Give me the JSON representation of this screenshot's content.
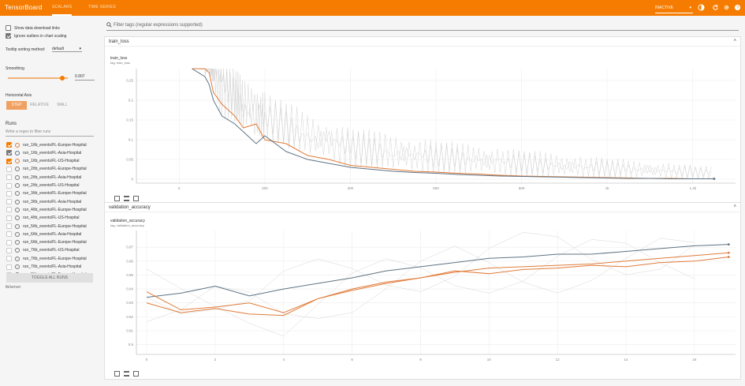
{
  "app": {
    "title": "TensorBoard",
    "tabs": [
      {
        "label": "SCALARS"
      },
      {
        "label": "TIME SERIES"
      }
    ],
    "mode": "INACTIVE",
    "accent": "#f57c00"
  },
  "sidebar": {
    "show_download": "Show data download links",
    "ignore_outliers": "Ignore outliers in chart scaling",
    "tooltip_label": "Tooltip sorting method:",
    "tooltip_value": "default",
    "smoothing_label": "Smoothing",
    "smoothing_value": 0.907,
    "smoothing_text": "0.907",
    "haxis_label": "Horizontal Axis",
    "haxis_options": [
      "STEP",
      "RELATIVE",
      "WALL"
    ],
    "runs_label": "Runs",
    "runs_filter_placeholder": "Write a regex to filter runs",
    "runs": [
      {
        "name": "run_1/tb_events/FL-Europe-Hospital",
        "checked": true,
        "color": "orange"
      },
      {
        "name": "run_1/tb_events/FL-Asia-Hospital",
        "checked": true,
        "color": "gray"
      },
      {
        "name": "run_1/tb_events/FL-US-Hospital",
        "checked": true,
        "color": "orange"
      },
      {
        "name": "run_2/tb_events/FL-Europe-Hospital",
        "checked": false
      },
      {
        "name": "run_2/tb_events/FL-Asia-Hospital",
        "checked": false
      },
      {
        "name": "run_2/tb_events/FL-US-Hospital",
        "checked": false
      },
      {
        "name": "run_3/tb_events/FL-Europe-Hospital",
        "checked": false
      },
      {
        "name": "run_3/tb_events/FL-Asia-Hospital",
        "checked": false
      },
      {
        "name": "run_4/tb_events/FL-Europe-Hospital",
        "checked": false
      },
      {
        "name": "run_4/tb_events/FL-US-Hospital",
        "checked": false
      },
      {
        "name": "run_5/tb_events/FL-Europe-Hospital",
        "checked": false
      },
      {
        "name": "run_6/tb_events/FL-Asia-Hospital",
        "checked": false
      },
      {
        "name": "run_6/tb_events/FL-Europe-Hospital",
        "checked": false
      },
      {
        "name": "run_7/tb_events/FL-US-Hospital",
        "checked": false
      },
      {
        "name": "run_7/tb_events/FL-Europe-Hospital",
        "checked": false
      },
      {
        "name": "run_7/tb_events/FL-Asia-Hospital",
        "checked": false
      },
      {
        "name": "run_8/tb_events/FL-Europe-Hospital",
        "checked": false
      }
    ],
    "toggle_all": "TOGGLE ALL RUNS",
    "footer": "tb/server"
  },
  "filter_placeholder": "Filter tags (regular expressions supported)",
  "chart_data": [
    {
      "type": "line",
      "card": "train_loss",
      "title": "train_loss",
      "subtitle": "tag: train_loss",
      "x_ticks": [
        "0",
        "200",
        "400",
        "600",
        "800",
        "1k",
        "1.2k"
      ],
      "xlim": [
        -100,
        1300
      ],
      "y_ticks": [
        "0",
        "0.05",
        "0.1",
        "0.15",
        "0.2",
        "0.25"
      ],
      "ylim": [
        -0.01,
        0.28
      ],
      "series": [
        {
          "color": "#e07b39",
          "x": [
            30,
            60,
            70,
            80,
            100,
            130,
            150,
            180,
            200,
            250,
            300,
            350,
            400,
            450,
            500,
            550,
            600,
            650,
            700,
            750,
            800,
            850,
            900,
            950,
            1000,
            1050,
            1100,
            1150,
            1200,
            1250
          ],
          "values": [
            0.3,
            0.28,
            0.27,
            0.22,
            0.19,
            0.16,
            0.13,
            0.14,
            0.1,
            0.09,
            0.06,
            0.05,
            0.035,
            0.03,
            0.025,
            0.02,
            0.018,
            0.015,
            0.013,
            0.01,
            0.008,
            0.007,
            0.006,
            0.005,
            0.004,
            0.003,
            0.002,
            0.002,
            0.001,
            0.001
          ]
        },
        {
          "color": "#5f7382",
          "x": [
            30,
            60,
            70,
            80,
            100,
            130,
            150,
            180,
            200,
            250,
            300,
            350,
            400,
            450,
            500,
            550,
            600,
            650,
            700,
            750,
            800,
            850,
            900,
            950,
            1000,
            1050,
            1100,
            1150,
            1200,
            1250
          ],
          "values": [
            0.3,
            0.26,
            0.24,
            0.2,
            0.16,
            0.14,
            0.12,
            0.09,
            0.11,
            0.07,
            0.05,
            0.04,
            0.03,
            0.025,
            0.02,
            0.017,
            0.015,
            0.012,
            0.01,
            0.008,
            0.007,
            0.006,
            0.005,
            0.004,
            0.003,
            0.002,
            0.002,
            0.001,
            0.001,
            0.001
          ]
        }
      ]
    },
    {
      "type": "line",
      "card": "validation_accuracy",
      "title": "validation_accuracy",
      "subtitle": "tag: validation_accuracy",
      "x_ticks": [
        "0",
        "2",
        "4",
        "6",
        "8",
        "10",
        "12",
        "14",
        "16"
      ],
      "xlim": [
        -0.3,
        17.2
      ],
      "y_ticks": [
        "0.9",
        "0.91",
        "0.92",
        "0.93",
        "0.94",
        "0.95",
        "0.96",
        "0.97"
      ],
      "ylim": [
        0.893,
        0.982
      ],
      "series": [
        {
          "color": "#5f7382",
          "x": [
            0,
            1,
            2,
            3,
            4,
            5,
            6,
            7,
            8,
            9,
            10,
            11,
            12,
            13,
            14,
            15,
            16,
            17
          ],
          "values": [
            0.934,
            0.937,
            0.942,
            0.935,
            0.94,
            0.944,
            0.948,
            0.953,
            0.956,
            0.959,
            0.962,
            0.963,
            0.965,
            0.965,
            0.967,
            0.969,
            0.971,
            0.972
          ]
        },
        {
          "color": "#e07b39",
          "x": [
            0,
            1,
            2,
            3,
            4,
            5,
            6,
            7,
            8,
            9,
            10,
            11,
            12,
            13,
            14,
            15,
            16,
            17
          ],
          "values": [
            0.938,
            0.925,
            0.927,
            0.93,
            0.923,
            0.933,
            0.939,
            0.944,
            0.948,
            0.952,
            0.955,
            0.956,
            0.957,
            0.958,
            0.96,
            0.962,
            0.964,
            0.966
          ]
        },
        {
          "color": "#e07b39",
          "x": [
            0,
            1,
            2,
            3,
            4,
            5,
            6,
            7,
            8,
            9,
            10,
            11,
            12,
            13,
            14,
            15,
            16,
            17
          ],
          "values": [
            0.93,
            0.923,
            0.926,
            0.922,
            0.921,
            0.933,
            0.94,
            0.945,
            0.948,
            0.953,
            0.951,
            0.954,
            0.955,
            0.957,
            0.956,
            0.959,
            0.96,
            0.963
          ]
        }
      ]
    }
  ]
}
